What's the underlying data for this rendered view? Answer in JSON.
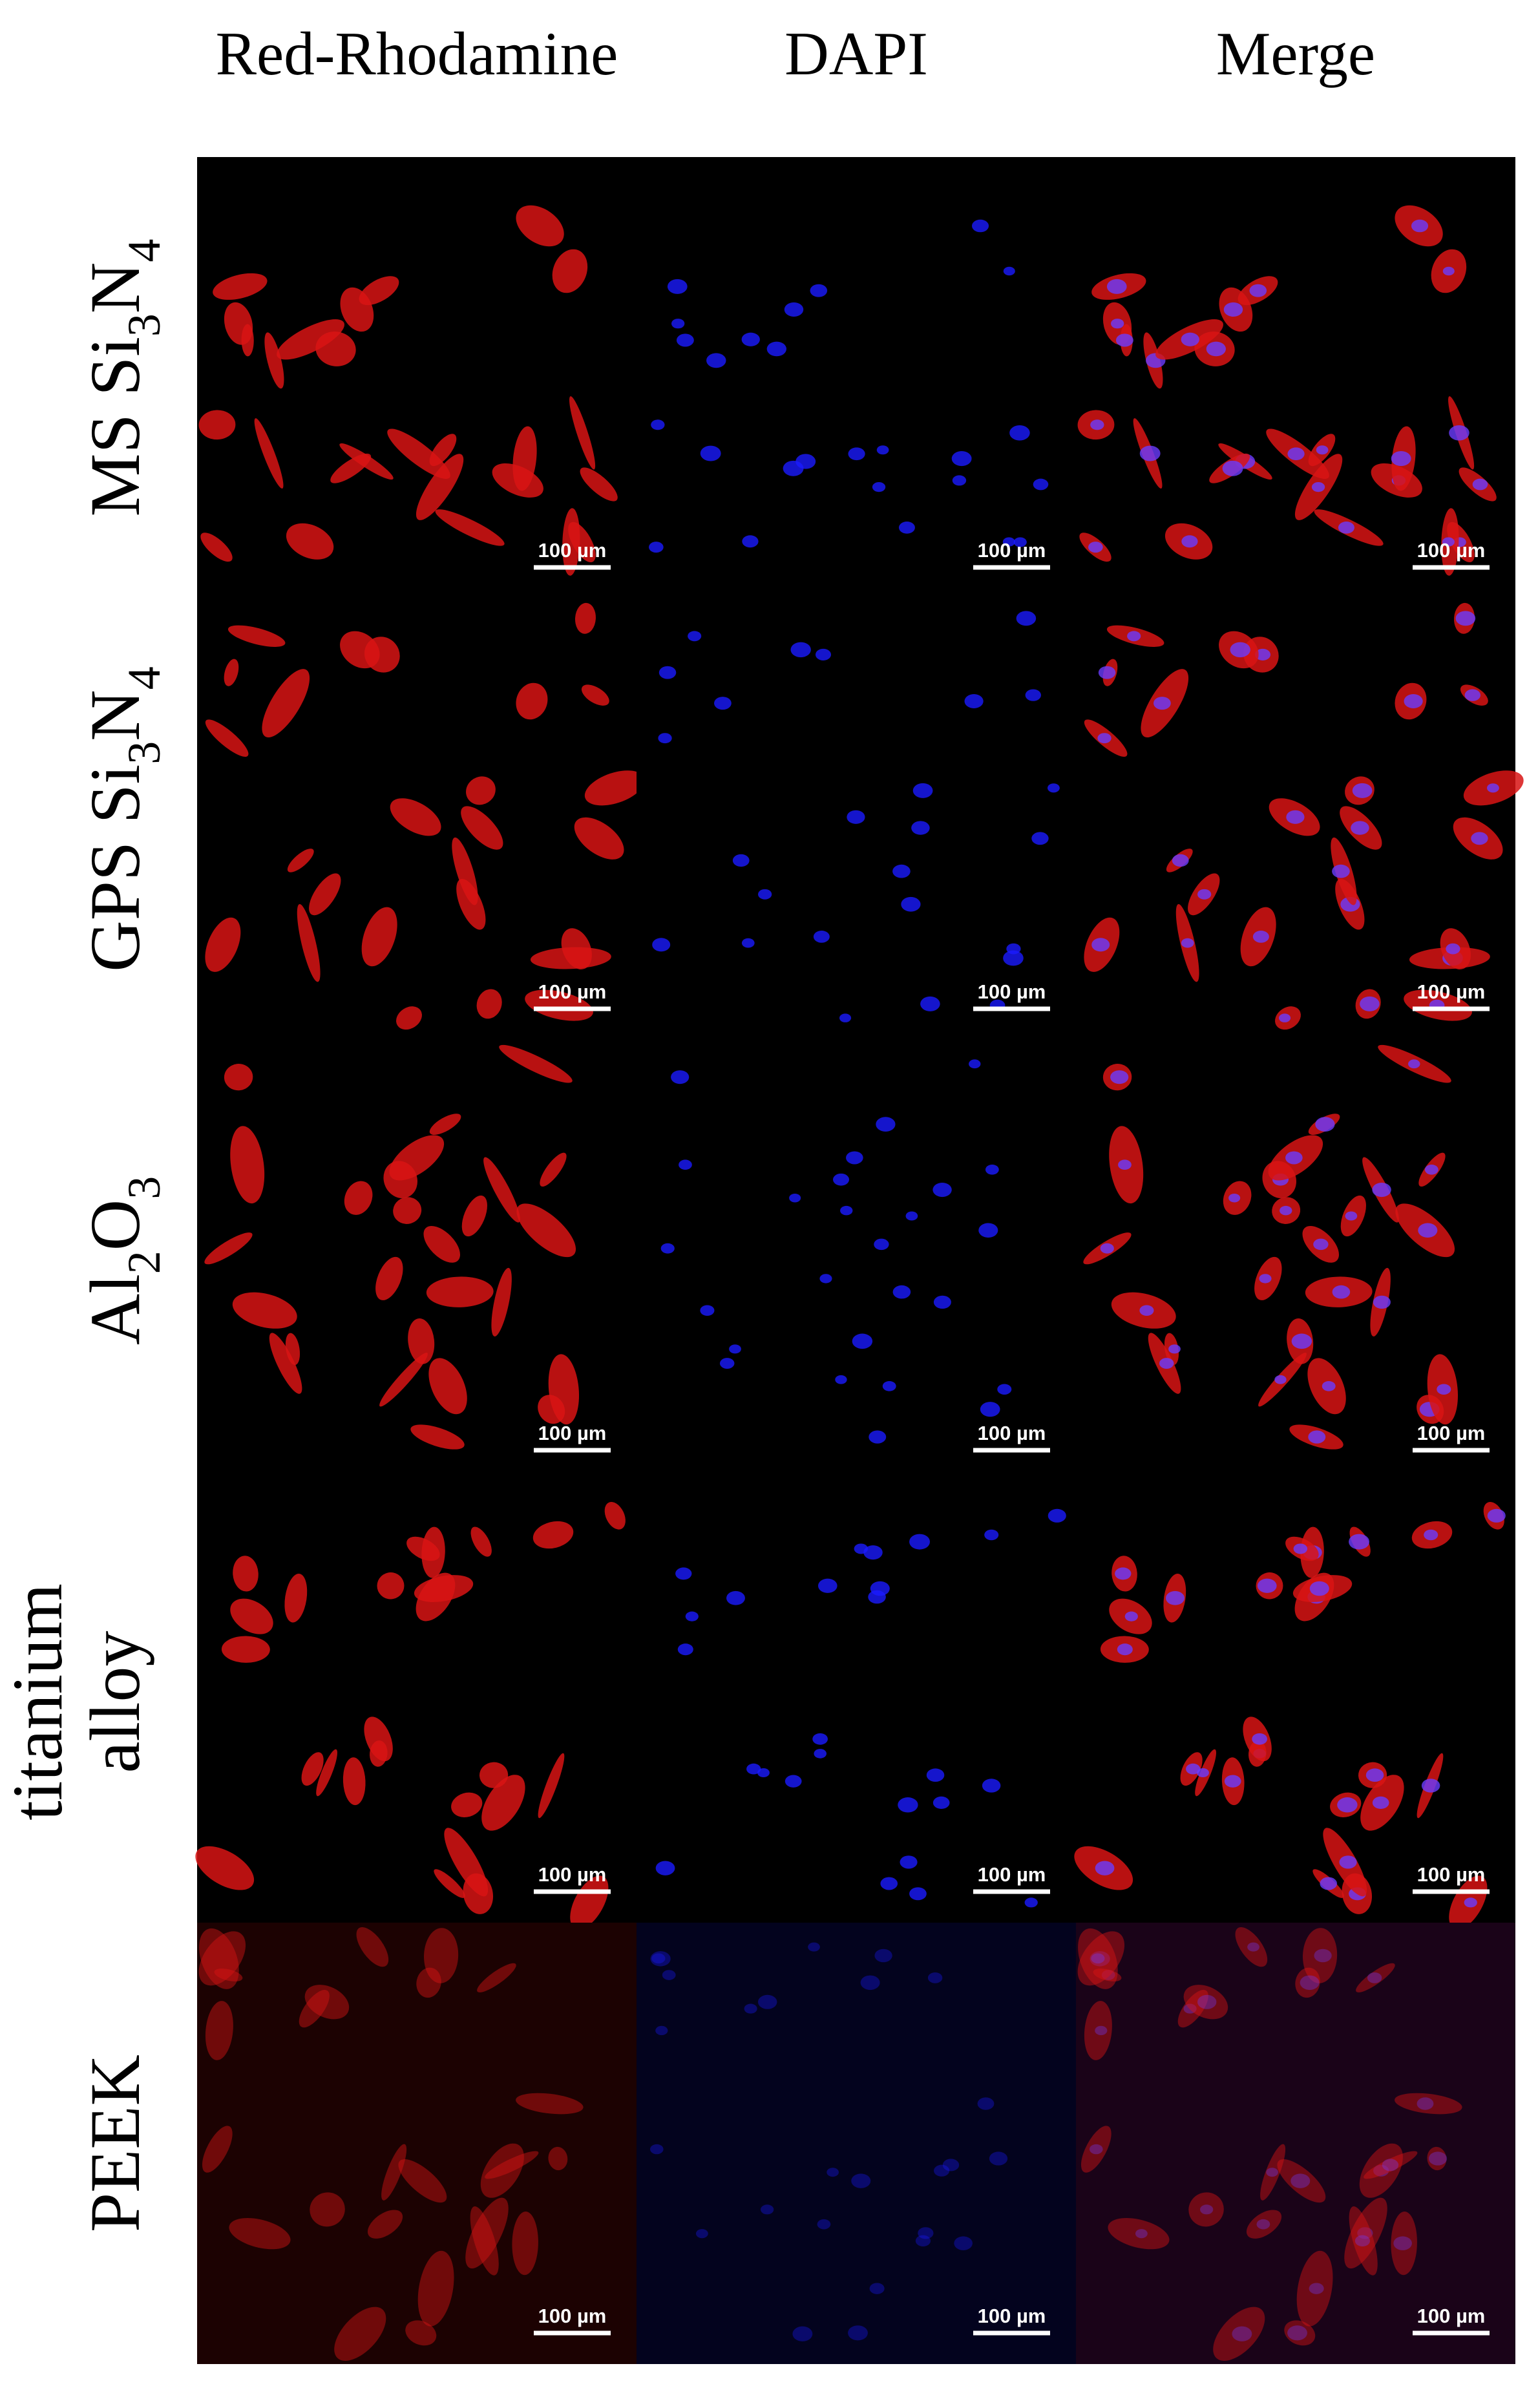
{
  "figure": {
    "columns": [
      "Red-Rhodamine",
      "DAPI",
      "Merge"
    ],
    "rows": [
      {
        "label_lines": [
          [
            {
              "text": "MS Si"
            },
            {
              "text": "3",
              "sub": true
            },
            {
              "text": "N"
            },
            {
              "text": "4",
              "sub": true
            }
          ]
        ],
        "dim": false
      },
      {
        "label_lines": [
          [
            {
              "text": "GPS Si"
            },
            {
              "text": "3",
              "sub": true
            },
            {
              "text": "N"
            },
            {
              "text": "4",
              "sub": true
            }
          ]
        ],
        "dim": false
      },
      {
        "label_lines": [
          [
            {
              "text": "Al"
            },
            {
              "text": "2",
              "sub": true
            },
            {
              "text": "O"
            },
            {
              "text": "3",
              "sub": true
            }
          ]
        ],
        "dim": false
      },
      {
        "label_lines": [
          [
            {
              "text": "titanium"
            }
          ],
          [
            {
              "text": "alloy"
            }
          ]
        ],
        "dim": false
      },
      {
        "label_lines": [
          [
            {
              "text": "PEEK"
            }
          ]
        ],
        "dim": true
      }
    ],
    "scale_bars": [
      [
        "100 µm",
        "100 µm",
        "100 µm"
      ],
      [
        "100 µm",
        "100 µm",
        "100 µm"
      ],
      [
        "100 µm",
        "100 µm",
        "100 µm"
      ],
      [
        "100 µm",
        "100 µm",
        "100 µm"
      ],
      [
        "100 µm",
        "100 µm",
        "100 µm"
      ]
    ]
  }
}
